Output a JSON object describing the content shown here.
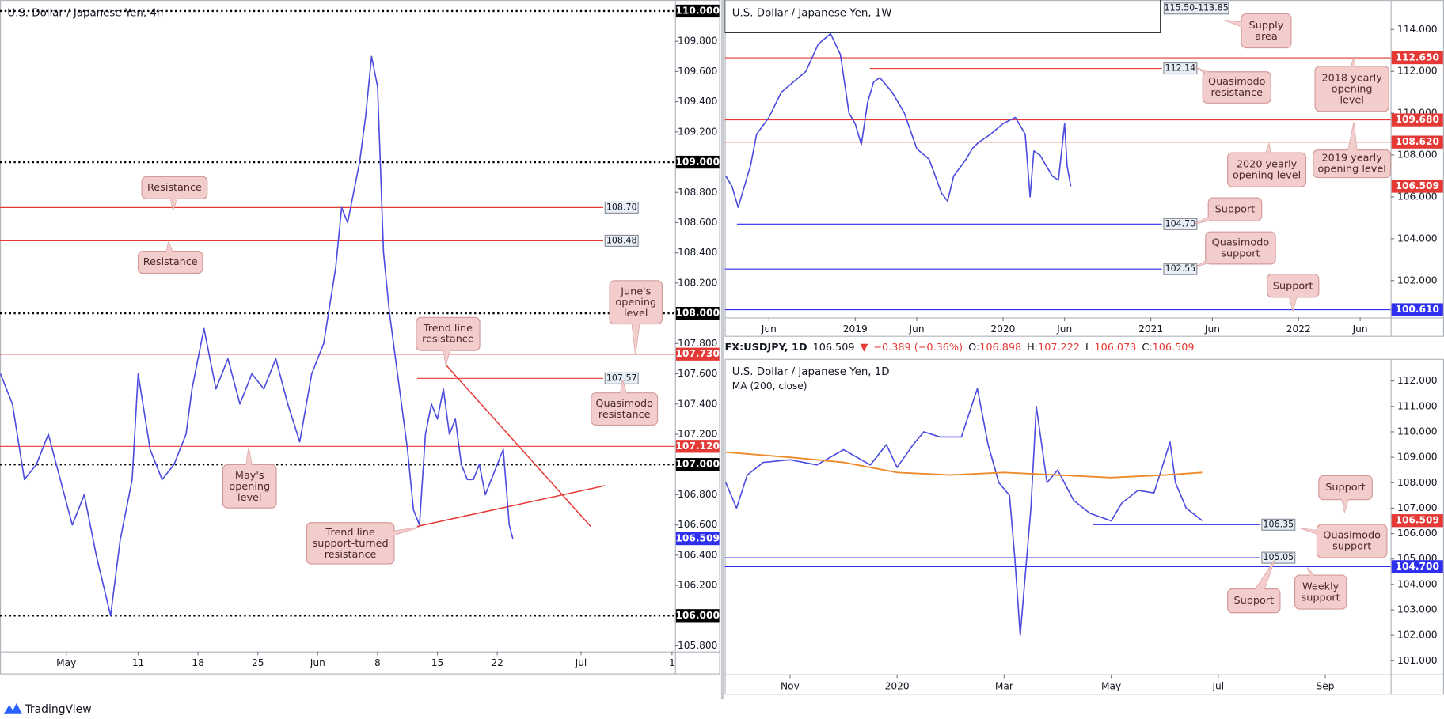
{
  "chart_data": [
    {
      "type": "line",
      "title": "U.S. Dollar / Japanese Yen, 4h",
      "color": "#4c4cdf",
      "xlim": [
        -5.54,
        50.85
      ],
      "ylim": [
        105.763,
        110.073
      ],
      "xticks": [
        {
          "value": 0,
          "label": "May"
        },
        {
          "value": 6,
          "label": "11"
        },
        {
          "value": 11,
          "label": "18"
        },
        {
          "value": 16,
          "label": "25"
        },
        {
          "value": 21,
          "label": "Jun"
        },
        {
          "value": 26,
          "label": "8"
        },
        {
          "value": 31,
          "label": "15"
        },
        {
          "value": 36,
          "label": "22"
        },
        {
          "value": 43,
          "label": "Jul"
        },
        {
          "value": 50.6,
          "label": "1"
        }
      ],
      "yticks": [
        {
          "value": 105.8,
          "label": "105.800"
        },
        {
          "value": 106.2,
          "label": "106.200"
        },
        {
          "value": 106.4,
          "label": "106.400"
        },
        {
          "value": 106.6,
          "label": "106.600"
        },
        {
          "value": 106.8,
          "label": "106.800"
        },
        {
          "value": 107.2,
          "label": "107.200"
        },
        {
          "value": 107.4,
          "label": "107.400"
        },
        {
          "value": 107.6,
          "label": "107.600"
        },
        {
          "value": 107.8,
          "label": "107.800"
        },
        {
          "value": 108.2,
          "label": "108.200"
        },
        {
          "value": 108.4,
          "label": "108.400"
        },
        {
          "value": 108.6,
          "label": "108.600"
        },
        {
          "value": 108.8,
          "label": "108.800"
        },
        {
          "value": 109.2,
          "label": "109.200"
        },
        {
          "value": 109.4,
          "label": "109.400"
        },
        {
          "value": 109.6,
          "label": "109.600"
        },
        {
          "value": 109.8,
          "label": "109.800"
        }
      ],
      "x": [
        -5.5,
        -4.5,
        -3.5,
        -2.5,
        -1.5,
        -0.5,
        0.5,
        1.5,
        2.5,
        3.7,
        4.5,
        5.5,
        6,
        7,
        8,
        9,
        10,
        10.5,
        11.5,
        12.5,
        13.5,
        14.5,
        15.5,
        16.5,
        17.5,
        18.5,
        19.5,
        20.5,
        21.5,
        22.5,
        23,
        23.5,
        24.5,
        25,
        25.5,
        26,
        26.5,
        27,
        27.5,
        28,
        28.5,
        29,
        29.5,
        30,
        30.5,
        31,
        31.5,
        32,
        32.5,
        33,
        33.5,
        34,
        34.5,
        35,
        35.5,
        36,
        36.5,
        37,
        37.3
      ],
      "values": [
        107.6,
        107.4,
        106.9,
        107.0,
        107.2,
        106.9,
        106.6,
        106.8,
        106.4,
        106.0,
        106.5,
        106.9,
        107.6,
        107.1,
        106.9,
        107.0,
        107.2,
        107.5,
        107.9,
        107.5,
        107.7,
        107.4,
        107.6,
        107.5,
        107.7,
        107.4,
        107.15,
        107.6,
        107.8,
        108.3,
        108.7,
        108.6,
        109.0,
        109.3,
        109.7,
        109.5,
        108.4,
        108.0,
        107.7,
        107.4,
        107.1,
        106.7,
        106.6,
        107.2,
        107.4,
        107.3,
        107.5,
        107.2,
        107.3,
        107.0,
        106.9,
        106.9,
        107.0,
        106.8,
        106.9,
        107.0,
        107.1,
        106.6,
        106.509
      ],
      "levels": [
        {
          "value": 110,
          "label": "110.000",
          "kind": "axis",
          "line": "dotted",
          "color": "#000000"
        },
        {
          "value": 109,
          "label": "109.000",
          "kind": "axis",
          "line": "dotted",
          "color": "#000000"
        },
        {
          "value": 108,
          "label": "108.000",
          "kind": "axis",
          "line": "dotted",
          "color": "#000000"
        },
        {
          "value": 107,
          "label": "107.000",
          "kind": "axis",
          "line": "dotted",
          "color": "#000000"
        },
        {
          "value": 106,
          "label": "106.000",
          "kind": "axis",
          "line": "dotted",
          "color": "#000000"
        },
        {
          "value": 107.73,
          "label": "107.730",
          "kind": "axis",
          "line": "solid",
          "color": "#e53935"
        },
        {
          "value": 107.12,
          "label": "107.120",
          "kind": "axis",
          "line": "solid",
          "color": "#e53935"
        },
        {
          "value": 106.509,
          "label": "106.509",
          "kind": "axis",
          "line": "none",
          "color": "#2f2ff0"
        },
        {
          "value": 108.7,
          "label": "108.70",
          "kind": "box",
          "line": "solid",
          "color": "#e53935",
          "from": -5.54,
          "to": 44.85
        },
        {
          "value": 108.48,
          "label": "108.48",
          "kind": "box",
          "line": "solid",
          "color": "#e53935",
          "from": -5.54,
          "to": 44.85
        },
        {
          "value": 107.57,
          "label": "107.57",
          "kind": "box",
          "line": "solid",
          "color": "#e53935",
          "from": 29.3,
          "to": 44.85
        }
      ],
      "trendlines": [
        {
          "color": "#e53935",
          "x": [
            31.7,
            43.8
          ],
          "values": [
            107.66,
            106.59
          ]
        },
        {
          "color": "#e53935",
          "x": [
            29.3,
            45.0
          ],
          "values": [
            106.59,
            106.86
          ]
        }
      ],
      "annotations": [
        "Resistance",
        "Resistance",
        "June's\nopening\nlevel",
        "Trend line\nresistance",
        "Quasimodo\nresistance",
        "May's\nopening\nlevel",
        "Trend line\nsupport-turned\nresistance"
      ]
    },
    {
      "type": "line",
      "title": "U.S. Dollar / Japanese Yen, 1W",
      "color": "#4c4cdf",
      "xlim": [
        1.41,
        55.47
      ],
      "ylim": [
        100.24,
        115.41
      ],
      "xticks": [
        {
          "value": 5,
          "label": "Jun"
        },
        {
          "value": 12,
          "label": "2019"
        },
        {
          "value": 17,
          "label": "Jun"
        },
        {
          "value": 24,
          "label": "2020"
        },
        {
          "value": 29,
          "label": "Jun"
        },
        {
          "value": 36,
          "label": "2021"
        },
        {
          "value": 41,
          "label": "Jun"
        },
        {
          "value": 48,
          "label": "2022"
        },
        {
          "value": 53,
          "label": "Jun"
        }
      ],
      "yticks": [
        {
          "value": 102,
          "label": "102.000"
        },
        {
          "value": 104,
          "label": "104.000"
        },
        {
          "value": 106,
          "label": "106.000"
        },
        {
          "value": 108,
          "label": "108.000"
        },
        {
          "value": 110,
          "label": "110.000"
        },
        {
          "value": 112,
          "label": "112.000"
        },
        {
          "value": 114,
          "label": "114.000"
        }
      ],
      "x": [
        1.5,
        2,
        2.5,
        3,
        3.5,
        4,
        5,
        6,
        7,
        8,
        9,
        10,
        10.8,
        11.5,
        12,
        12.5,
        13,
        13.5,
        14,
        15,
        16,
        17,
        18,
        19,
        19.5,
        20,
        21,
        21.5,
        22,
        23,
        24,
        25,
        25.8,
        26.2,
        26.5,
        27,
        28,
        28.5,
        29,
        29.2,
        29.5
      ],
      "values": [
        107.0,
        106.5,
        105.5,
        106.5,
        107.5,
        109.0,
        109.8,
        111.0,
        111.5,
        112.0,
        113.3,
        113.8,
        112.8,
        110.0,
        109.5,
        108.5,
        110.5,
        111.5,
        111.7,
        111.0,
        110.0,
        108.3,
        107.8,
        106.2,
        105.8,
        107.0,
        107.8,
        108.3,
        108.6,
        109.0,
        109.5,
        109.8,
        109.0,
        106.0,
        108.2,
        108.0,
        107.0,
        106.8,
        109.5,
        107.5,
        106.509
      ],
      "zones": [
        {
          "label": "115.50-113.85",
          "low": 113.85,
          "high": 115.5,
          "from": 1.41,
          "to": 36.78
        }
      ],
      "levels": [
        {
          "value": 112.65,
          "label": "112.650",
          "kind": "axis",
          "line": "solid",
          "color": "#e53935"
        },
        {
          "value": 109.68,
          "label": "109.680",
          "kind": "axis",
          "line": "solid",
          "color": "#e53935"
        },
        {
          "value": 108.62,
          "label": "108.620",
          "kind": "axis",
          "line": "solid",
          "color": "#e53935"
        },
        {
          "value": 106.509,
          "label": "106.509",
          "kind": "axis",
          "line": "none",
          "color": "#e53935"
        },
        {
          "value": 100.61,
          "label": "100.610",
          "kind": "axis",
          "line": "solid",
          "color": "#2f2ff0"
        },
        {
          "value": 112.14,
          "label": "112.14",
          "kind": "box",
          "line": "solid",
          "color": "#e53935",
          "from": 13.2,
          "to": 36.9
        },
        {
          "value": 104.7,
          "label": "104.70",
          "kind": "box",
          "line": "solid",
          "color": "#2f2ff0",
          "from": 2.4,
          "to": 36.9
        },
        {
          "value": 102.55,
          "label": "102.55",
          "kind": "box",
          "line": "solid",
          "color": "#2f2ff0",
          "from": 1.41,
          "to": 36.9
        }
      ],
      "annotations": [
        "Supply\narea",
        "Quasimodo\nresistance",
        "2018 yearly\nopening\nlevel",
        "2020 yearly\nopening level",
        "2019 yearly\nopening level",
        "Support",
        "Quasimodo\nsupport",
        "Support"
      ]
    },
    {
      "type": "line",
      "title": "U.S. Dollar / Japanese Yen, 1D",
      "color": "#4c4cdf",
      "xlim": [
        -1.22,
        11.22
      ],
      "ylim": [
        100.46,
        112.87
      ],
      "xticks": [
        {
          "value": 0,
          "label": "Nov"
        },
        {
          "value": 2,
          "label": "2020"
        },
        {
          "value": 4,
          "label": "Mar"
        },
        {
          "value": 6,
          "label": "May"
        },
        {
          "value": 8,
          "label": "Jul"
        },
        {
          "value": 10,
          "label": "Sep"
        }
      ],
      "yticks": [
        {
          "value": 101,
          "label": "101.000"
        },
        {
          "value": 102,
          "label": "102.000"
        },
        {
          "value": 103,
          "label": "103.000"
        },
        {
          "value": 104,
          "label": "104.000"
        },
        {
          "value": 105,
          "label": "105.000"
        },
        {
          "value": 106,
          "label": "106.000"
        },
        {
          "value": 107,
          "label": "107.000"
        },
        {
          "value": 108,
          "label": "108.000"
        },
        {
          "value": 109,
          "label": "109.000"
        },
        {
          "value": 110,
          "label": "110.000"
        },
        {
          "value": 111,
          "label": "111.000"
        },
        {
          "value": 112,
          "label": "112.000"
        }
      ],
      "x": [
        -1.2,
        -1,
        -0.8,
        -0.5,
        0,
        0.5,
        1,
        1.5,
        1.8,
        2,
        2.3,
        2.5,
        2.8,
        3.2,
        3.5,
        3.7,
        3.9,
        4.1,
        4.2,
        4.3,
        4.5,
        4.6,
        4.8,
        5,
        5.3,
        5.6,
        6,
        6.2,
        6.5,
        6.8,
        7.1,
        7.2,
        7.4,
        7.7
      ],
      "values": [
        108.0,
        107.0,
        108.3,
        108.8,
        108.9,
        108.7,
        109.3,
        108.7,
        109.5,
        108.6,
        109.5,
        110.0,
        109.8,
        109.8,
        111.7,
        109.5,
        108.0,
        107.5,
        105.0,
        102.0,
        107.0,
        111.0,
        108.0,
        108.5,
        107.3,
        106.8,
        106.5,
        107.2,
        107.7,
        107.6,
        109.6,
        108.0,
        107.0,
        106.509
      ],
      "series": [
        {
          "name": "MA (200, close)",
          "color": "#ef8a2a",
          "x": [
            -1.2,
            0,
            1,
            2,
            3,
            4,
            5,
            6,
            7,
            7.7
          ],
          "values": [
            109.2,
            109.0,
            108.8,
            108.4,
            108.3,
            108.4,
            108.3,
            108.2,
            108.3,
            108.4
          ]
        }
      ],
      "levels": [
        {
          "value": 106.509,
          "label": "106.509",
          "kind": "axis",
          "line": "none",
          "color": "#e53935"
        },
        {
          "value": 104.7,
          "label": "104.700",
          "kind": "axis",
          "line": "solid",
          "color": "#2f2ff0"
        },
        {
          "value": 106.35,
          "label": "106.35",
          "kind": "box",
          "line": "solid",
          "color": "#2f2ff0",
          "from": 5.66,
          "to": 8.78
        },
        {
          "value": 105.05,
          "label": "105.05",
          "kind": "box",
          "line": "solid",
          "color": "#2f2ff0",
          "from": -1.22,
          "to": 8.78
        }
      ],
      "annotations": [
        "Support",
        "Quasimodo\nsupport",
        "Weekly\nsupport",
        "Support"
      ]
    }
  ],
  "quote": {
    "symbol": "FX:USDJPY, 1D",
    "last": 106.509,
    "arrow": "▼",
    "change": "−0.389 (−0.36%)",
    "ohlc": [
      {
        "label": "O:",
        "value": 106.898
      },
      {
        "label": "H:",
        "value": 107.222
      },
      {
        "label": "L:",
        "value": 106.073
      },
      {
        "label": "C:",
        "value": 106.509
      }
    ]
  },
  "footer": {
    "brand": "TradingView"
  }
}
